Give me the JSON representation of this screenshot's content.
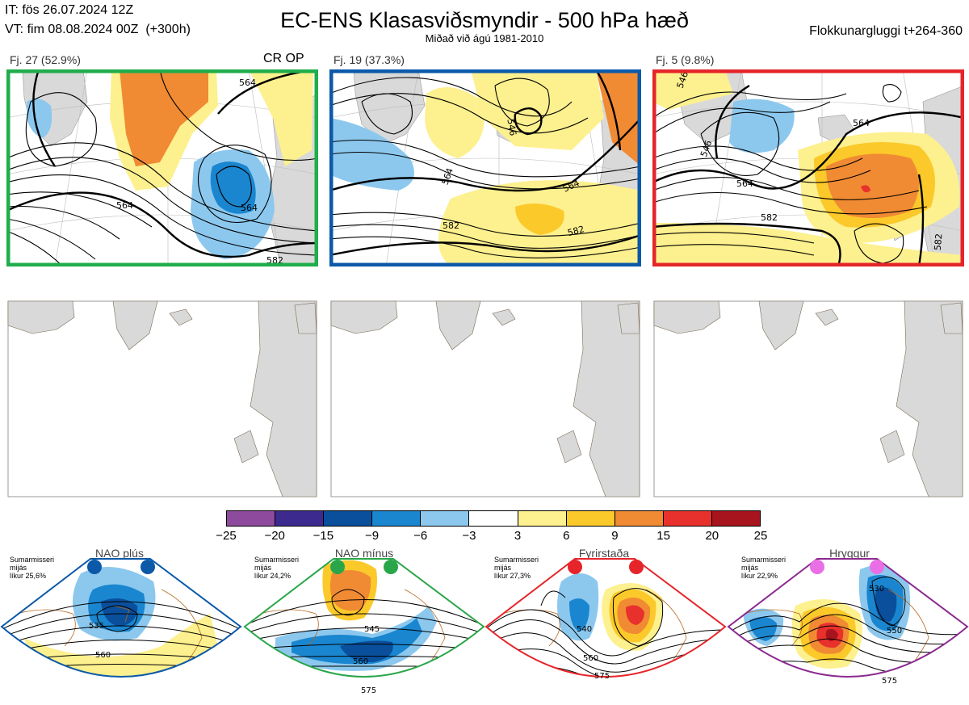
{
  "header": {
    "it_line": "IT: fös 26.07.2024 12Z",
    "vt_line": "VT: fim 08.08.2024 00Z  (+300h)",
    "title": "EC-ENS Klasasviðsmyndir - 500 hPa hæð",
    "subtitle": "Miðað við ágú 1981-2010",
    "window": "Flokkunargluggi t+264-360"
  },
  "panels": [
    {
      "label": "Fj. 27 (52.9%)",
      "tag": "CR OP",
      "border_color": "#1fae4b",
      "contours": [
        "564",
        "564",
        "564",
        "582"
      ]
    },
    {
      "label": "Fj. 19 (37.3%)",
      "tag": "",
      "border_color": "#0b59a8",
      "contours": [
        "546",
        "564",
        "564",
        "582",
        "582"
      ]
    },
    {
      "label": "Fj. 5 (9.8%)",
      "tag": "",
      "border_color": "#e5252a",
      "contours": [
        "546",
        "564",
        "546",
        "582",
        "564",
        "582"
      ]
    }
  ],
  "colorbar": {
    "ticks": [
      "−25",
      "−20",
      "−15",
      "−9",
      "−6",
      "−3",
      "3",
      "6",
      "9",
      "15",
      "20",
      "25"
    ],
    "colors": [
      "#8e4b9e",
      "#3d2a8f",
      "#0a4f9c",
      "#1a86d0",
      "#8cc8ee",
      "#ffffff",
      "#fdf08e",
      "#fbc92a",
      "#f08a33",
      "#e8302c",
      "#a8141d"
    ]
  },
  "regimes": [
    {
      "name": "NAO plús",
      "info": "Sumarmisseri\nmijás\nlíkur 25,6%",
      "border_color": "#0b59a8",
      "dot_color": "#0b59a8",
      "contours": [
        "535",
        "560"
      ]
    },
    {
      "name": "NAO mínus",
      "info": "Sumarmisseri\nmijás\nlíkur 24,2%",
      "border_color": "#2aa64a",
      "dot_color": "#2aa64a",
      "contours": [
        "545",
        "560",
        "575"
      ]
    },
    {
      "name": "Fyrirstaða",
      "info": "Sumarmisseri\nmijás\nlíkur 27,3%",
      "border_color": "#e5252a",
      "dot_color": "#e5252a",
      "contours": [
        "540",
        "560",
        "575"
      ]
    },
    {
      "name": "Hryggur",
      "info": "Sumarmisseri\nmijás\nlíkur 22,9%",
      "border_color": "#8b2a8f",
      "dot_color": "#ea6fe6",
      "contours": [
        "530",
        "550",
        "575"
      ]
    }
  ]
}
